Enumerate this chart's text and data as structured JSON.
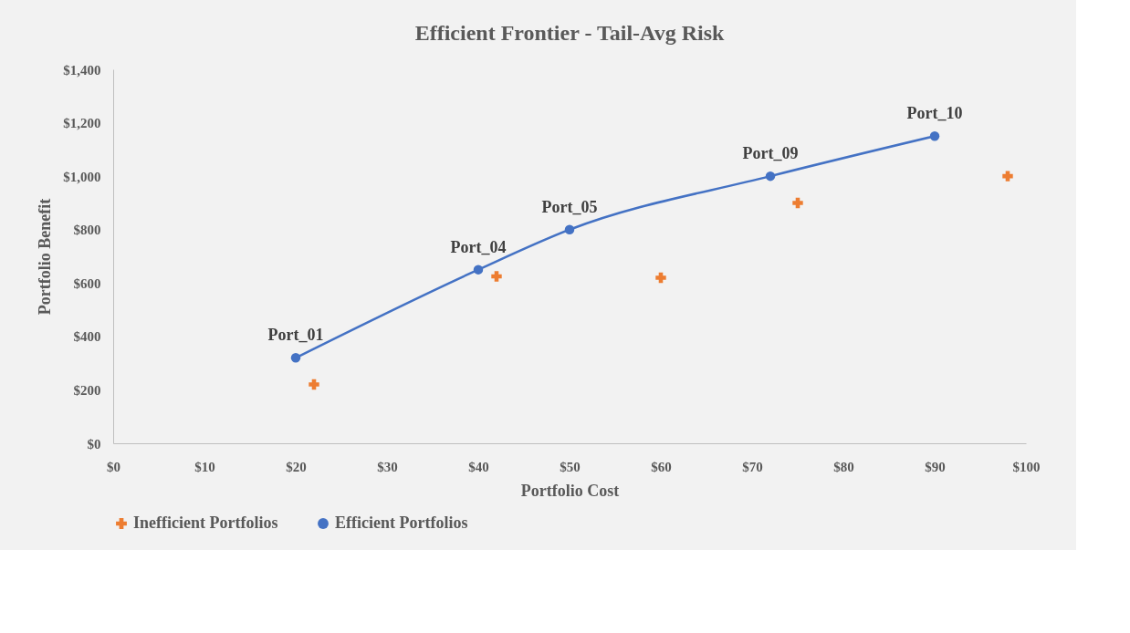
{
  "chart_data": {
    "type": "scatter",
    "title": "Efficient Frontier - Tail-Avg Risk",
    "xlabel": "Portfolio Cost",
    "ylabel": "Portfolio Benefit",
    "series": [
      {
        "name": "Inefficient Portfolios",
        "color": "#ed7d31",
        "marker": "cross",
        "x": [
          22,
          42,
          60,
          75,
          98
        ],
        "values": [
          220,
          625,
          620,
          900,
          1000
        ]
      },
      {
        "name": "Efficient Portfolios",
        "color": "#4472c4",
        "type": "line",
        "marker": "circle",
        "x": [
          20,
          40,
          50,
          72,
          90
        ],
        "values": [
          320,
          650,
          800,
          1000,
          1150
        ]
      }
    ],
    "xlim": [
      0,
      100
    ],
    "xticks": [
      {
        "value": 0,
        "label": "$0"
      },
      {
        "value": 10,
        "label": "$10"
      },
      {
        "value": 20,
        "label": "$20"
      },
      {
        "value": 30,
        "label": "$30"
      },
      {
        "value": 40,
        "label": "$40"
      },
      {
        "value": 50,
        "label": "$50"
      },
      {
        "value": 60,
        "label": "$60"
      },
      {
        "value": 70,
        "label": "$70"
      },
      {
        "value": 80,
        "label": "$80"
      },
      {
        "value": 90,
        "label": "$90"
      },
      {
        "value": 100,
        "label": "$100"
      }
    ],
    "ylim": [
      0,
      1400
    ],
    "yticks": [
      {
        "value": 0,
        "label": "$0"
      },
      {
        "value": 200,
        "label": "$200"
      },
      {
        "value": 400,
        "label": "$400"
      },
      {
        "value": 600,
        "label": "$600"
      },
      {
        "value": 800,
        "label": "$800"
      },
      {
        "value": 1000,
        "label": "$1,000"
      },
      {
        "value": 1200,
        "label": "$1,200"
      },
      {
        "value": 1400,
        "label": "$1,400"
      }
    ],
    "annotations": [
      {
        "text": "Port_01",
        "x": 20,
        "y": 320
      },
      {
        "text": "Port_04",
        "x": 40,
        "y": 650
      },
      {
        "text": "Port_05",
        "x": 50,
        "y": 800
      },
      {
        "text": "Port_09",
        "x": 72,
        "y": 1000
      },
      {
        "text": "Port_10",
        "x": 90,
        "y": 1150
      }
    ],
    "grid": false,
    "legend": "bottom"
  }
}
